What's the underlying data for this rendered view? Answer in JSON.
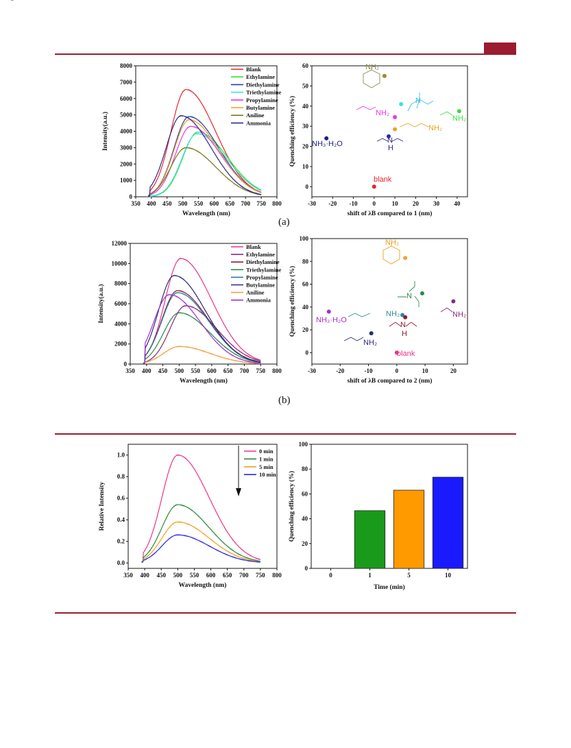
{
  "header": {
    "accent_color": "#9b1b30"
  },
  "figure_a": {
    "caption": "(a)",
    "spectra": {
      "type": "line",
      "xlabel": "Wavelength (nm)",
      "ylabel": "Intensity(a.u.)",
      "xlim": [
        350,
        800
      ],
      "ylim": [
        0,
        8000
      ],
      "xticks": [
        "350",
        "400",
        "450",
        "500",
        "550",
        "600",
        "650",
        "700",
        "750",
        "800"
      ],
      "yticks": [
        "0",
        "1000",
        "2000",
        "3000",
        "4000",
        "5000",
        "6000",
        "7000",
        "8000"
      ],
      "series": [
        {
          "name": "Blank",
          "color": "#e8242b",
          "peak": 6550,
          "center": 510
        },
        {
          "name": "Ethylamine",
          "color": "#3ddc3d",
          "peak": 3950,
          "center": 548
        },
        {
          "name": "Diethylamine",
          "color": "#2b3ab0",
          "peak": 4900,
          "center": 520
        },
        {
          "name": "Triethylamine",
          "color": "#39e0e6",
          "peak": 3850,
          "center": 545
        },
        {
          "name": "Propylamine",
          "color": "#e838e8",
          "peak": 4300,
          "center": 525
        },
        {
          "name": "Butylamine",
          "color": "#f0a020",
          "peak": 4700,
          "center": 520
        },
        {
          "name": "Aniline",
          "color": "#7a7a20",
          "peak": 3000,
          "center": 510
        },
        {
          "name": "Ammonia",
          "color": "#2a2a8a",
          "peak": 4950,
          "center": 495
        }
      ]
    },
    "scatter": {
      "type": "scatter",
      "xlabel": "shift of λB compared to 1 (nm)",
      "ylabel": "Quenching efficiency (%)",
      "xlim": [
        -30,
        45
      ],
      "ylim": [
        -5,
        60
      ],
      "xticks": [
        "-30",
        "-20",
        "-10",
        "0",
        "10",
        "20",
        "30",
        "40"
      ],
      "yticks": [
        "0",
        "10",
        "20",
        "30",
        "40",
        "50",
        "60"
      ],
      "points": [
        {
          "label": "blank",
          "x": 0,
          "y": 0,
          "color": "#e8242b"
        },
        {
          "label": "NH₃·H₂O",
          "x": -23,
          "y": 24,
          "color": "#1a237e"
        },
        {
          "label": "",
          "x": 7,
          "y": 25,
          "color": "#2a2ab0"
        },
        {
          "label": "NH₂",
          "x": 10,
          "y": 28.5,
          "color": "#f0a020"
        },
        {
          "label": "NH₂",
          "x": 10,
          "y": 34.5,
          "color": "#e838e8"
        },
        {
          "label": "",
          "x": 13,
          "y": 41,
          "color": "#39e0e6"
        },
        {
          "label": "NH₂",
          "x": 41,
          "y": 37.5,
          "color": "#3ddc3d"
        },
        {
          "label": "",
          "x": 5,
          "y": 55,
          "color": "#9a8a30"
        }
      ],
      "molecule_labels": [
        {
          "text": "NH₂",
          "color": "#8a8a50"
        },
        {
          "text": "N",
          "color": "#39c0e0"
        },
        {
          "text": "NH₂",
          "color": "#e838e8"
        },
        {
          "text": "NH₂",
          "color": "#e8a020"
        },
        {
          "text": "NH₂",
          "color": "#3ddc3d"
        },
        {
          "text": "N",
          "color": "#2a2a8a"
        },
        {
          "text": "H",
          "color": "#2a2a8a"
        }
      ]
    }
  },
  "figure_b": {
    "caption": "(b)",
    "spectra": {
      "type": "line",
      "xlabel": "Wavelength (nm)",
      "ylabel": "Intensity(a.u.)",
      "xlim": [
        350,
        800
      ],
      "ylim": [
        0,
        12000
      ],
      "xticks": [
        "350",
        "400",
        "450",
        "500",
        "550",
        "600",
        "650",
        "700",
        "750",
        "800"
      ],
      "yticks": [
        "0",
        "2000",
        "4000",
        "6000",
        "8000",
        "10000",
        "12000"
      ],
      "series": [
        {
          "name": "Blank",
          "color": "#e8358a",
          "peak": 10500,
          "center": 505
        },
        {
          "name": "Ethylamine",
          "color": "#8a2a7a",
          "peak": 5800,
          "center": 520
        },
        {
          "name": "Diethylamine",
          "color": "#8a1a3a",
          "peak": 7300,
          "center": 495
        },
        {
          "name": "Triethylamine",
          "color": "#2a8a4a",
          "peak": 5100,
          "center": 500
        },
        {
          "name": "Propylamine",
          "color": "#2a7a9a",
          "peak": 7100,
          "center": 495
        },
        {
          "name": "Butylamine",
          "color": "#2a2a7a",
          "peak": 8800,
          "center": 485
        },
        {
          "name": "Aniline",
          "color": "#f0a040",
          "peak": 1750,
          "center": 500
        },
        {
          "name": "Ammonia",
          "color": "#a030d0",
          "peak": 6900,
          "center": 470
        }
      ]
    },
    "scatter": {
      "type": "scatter",
      "xlabel": "shift of λB compared to 2 (nm)",
      "ylabel": "Quenching efficiency (%)",
      "xlim": [
        -30,
        25
      ],
      "ylim": [
        -10,
        100
      ],
      "xticks": [
        "-30",
        "-20",
        "-10",
        "0",
        "10",
        "20"
      ],
      "yticks": [
        "0",
        "20",
        "40",
        "60",
        "80",
        "100"
      ],
      "points": [
        {
          "label": "blank",
          "x": 0,
          "y": 0,
          "color": "#e8358a"
        },
        {
          "label": "NH₃·H₂O",
          "x": -24,
          "y": 36,
          "color": "#a030d0"
        },
        {
          "label": "NH₂",
          "x": -9,
          "y": 17,
          "color": "#2a2a7a"
        },
        {
          "label": "",
          "x": 2,
          "y": 33,
          "color": "#2a8a9a"
        },
        {
          "label": "",
          "x": 3,
          "y": 31,
          "color": "#8a1a3a"
        },
        {
          "label": "",
          "x": 9,
          "y": 52,
          "color": "#2a8a4a"
        },
        {
          "label": "NH₂",
          "x": 20,
          "y": 45,
          "color": "#8a2a7a"
        },
        {
          "label": "",
          "x": 3,
          "y": 83,
          "color": "#f0a040"
        }
      ],
      "molecule_labels": [
        {
          "text": "NH₂",
          "color": "#e8a020"
        },
        {
          "text": "N",
          "color": "#2a8a4a"
        },
        {
          "text": "NH₂",
          "color": "#2a8a9a"
        },
        {
          "text": "N",
          "color": "#8a1a3a"
        },
        {
          "text": "H",
          "color": "#8a1a3a"
        },
        {
          "text": "NH₂",
          "color": "#8a2a7a"
        },
        {
          "text": "NH₂",
          "color": "#2a2a7a"
        }
      ]
    }
  },
  "figure_c": {
    "spectra": {
      "type": "line",
      "xlabel": "Wavelength (nm)",
      "ylabel": "Relative Intensity",
      "xlim": [
        350,
        800
      ],
      "ylim": [
        -0.05,
        1.1
      ],
      "xticks": [
        "350",
        "400",
        "450",
        "500",
        "550",
        "600",
        "650",
        "700",
        "750",
        "800"
      ],
      "yticks": [
        "0.0",
        "0.2",
        "0.4",
        "0.6",
        "0.8",
        "1.0"
      ],
      "series": [
        {
          "name": "0 min",
          "color": "#e8358a",
          "peak": 1.0,
          "center": 500
        },
        {
          "name": "1 min",
          "color": "#2a8a3a",
          "peak": 0.54,
          "center": 500
        },
        {
          "name": "5 min",
          "color": "#f0a020",
          "peak": 0.38,
          "center": 500
        },
        {
          "name": "10 min",
          "color": "#2a2ae0",
          "peak": 0.26,
          "center": 500
        }
      ]
    },
    "bar": {
      "type": "bar",
      "xlabel": "Time (min)",
      "ylabel": "Quenching efficiency (%)",
      "categories": [
        "0",
        "1",
        "5",
        "10"
      ],
      "values": [
        0,
        46.5,
        63,
        73.5
      ],
      "colors": [
        "#ffffff",
        "#1a9a1a",
        "#ff9a00",
        "#1a1aff"
      ],
      "ylim": [
        0,
        100
      ],
      "yticks": [
        "0",
        "20",
        "40",
        "60",
        "80",
        "100"
      ]
    }
  }
}
